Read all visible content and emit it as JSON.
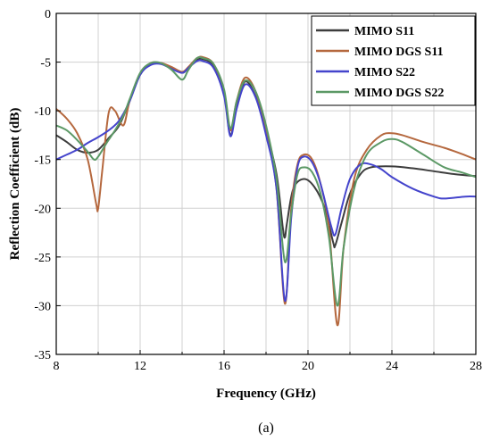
{
  "chart_data": {
    "type": "line",
    "title": "",
    "xlabel": "Frequency (GHz)",
    "ylabel": "Reflection Coefficient (dB)",
    "caption": "(a)",
    "xlim": [
      8,
      28
    ],
    "ylim": [
      -35,
      0
    ],
    "xticks": [
      8,
      12,
      16,
      20,
      24,
      28
    ],
    "yticks": [
      0,
      -5,
      -10,
      -15,
      -20,
      -25,
      -30,
      -35
    ],
    "grid": true,
    "legend": "top-right",
    "series": [
      {
        "name": "MIMO S11",
        "color": "#3d3d3d",
        "points": [
          [
            8,
            -12.5
          ],
          [
            8.5,
            -13.2
          ],
          [
            9,
            -14
          ],
          [
            9.5,
            -14.3
          ],
          [
            10,
            -14
          ],
          [
            10.5,
            -12.8
          ],
          [
            11,
            -11.5
          ],
          [
            11.5,
            -9
          ],
          [
            12,
            -6.3
          ],
          [
            12.5,
            -5.2
          ],
          [
            13,
            -5.1
          ],
          [
            13.5,
            -5.6
          ],
          [
            14,
            -6.1
          ],
          [
            14.3,
            -5.6
          ],
          [
            14.7,
            -4.8
          ],
          [
            15,
            -4.7
          ],
          [
            15.5,
            -5.4
          ],
          [
            16,
            -8.2
          ],
          [
            16.3,
            -12.5
          ],
          [
            16.6,
            -9.5
          ],
          [
            17,
            -7
          ],
          [
            17.5,
            -8.5
          ],
          [
            18,
            -12
          ],
          [
            18.5,
            -16.5
          ],
          [
            18.8,
            -22
          ],
          [
            18.9,
            -23
          ],
          [
            19,
            -21.5
          ],
          [
            19.3,
            -18
          ],
          [
            19.8,
            -17
          ],
          [
            20.3,
            -17.8
          ],
          [
            20.8,
            -20
          ],
          [
            21.2,
            -23.5
          ],
          [
            21.3,
            -23.8
          ],
          [
            21.6,
            -21.5
          ],
          [
            22,
            -18.5
          ],
          [
            22.5,
            -16.5
          ],
          [
            23,
            -15.8
          ],
          [
            24,
            -15.7
          ],
          [
            25,
            -15.9
          ],
          [
            26,
            -16.2
          ],
          [
            27,
            -16.5
          ],
          [
            28,
            -16.7
          ]
        ]
      },
      {
        "name": "MIMO DGS S11",
        "color": "#b5683e",
        "points": [
          [
            8,
            -9.8
          ],
          [
            8.5,
            -10.8
          ],
          [
            9,
            -12.3
          ],
          [
            9.5,
            -15
          ],
          [
            9.9,
            -19.5
          ],
          [
            10,
            -20
          ],
          [
            10.2,
            -16
          ],
          [
            10.5,
            -10.2
          ],
          [
            10.8,
            -10
          ],
          [
            11.2,
            -11.5
          ],
          [
            11.5,
            -9
          ],
          [
            12,
            -6.2
          ],
          [
            12.5,
            -5.1
          ],
          [
            13,
            -5.1
          ],
          [
            13.5,
            -5.5
          ],
          [
            14,
            -6
          ],
          [
            14.3,
            -5.5
          ],
          [
            14.7,
            -4.6
          ],
          [
            15,
            -4.5
          ],
          [
            15.5,
            -5.2
          ],
          [
            16,
            -8
          ],
          [
            16.3,
            -12
          ],
          [
            16.6,
            -9
          ],
          [
            17,
            -6.6
          ],
          [
            17.5,
            -8
          ],
          [
            18,
            -12
          ],
          [
            18.5,
            -18
          ],
          [
            18.9,
            -29.8
          ],
          [
            19.2,
            -20
          ],
          [
            19.5,
            -15.5
          ],
          [
            19.8,
            -14.5
          ],
          [
            20.2,
            -15
          ],
          [
            20.6,
            -17.5
          ],
          [
            21,
            -22
          ],
          [
            21.4,
            -32
          ],
          [
            21.7,
            -24
          ],
          [
            22.2,
            -17
          ],
          [
            22.8,
            -14
          ],
          [
            23.5,
            -12.5
          ],
          [
            24,
            -12.3
          ],
          [
            24.5,
            -12.5
          ],
          [
            25.5,
            -13.2
          ],
          [
            26.5,
            -13.8
          ],
          [
            27.3,
            -14.4
          ],
          [
            28,
            -15
          ]
        ]
      },
      {
        "name": "MIMO S22",
        "color": "#4444cc",
        "points": [
          [
            8,
            -15
          ],
          [
            8.5,
            -14.5
          ],
          [
            9,
            -14
          ],
          [
            9.5,
            -13.3
          ],
          [
            10,
            -12.7
          ],
          [
            10.5,
            -12
          ],
          [
            11,
            -11
          ],
          [
            11.5,
            -9
          ],
          [
            12,
            -6.3
          ],
          [
            12.5,
            -5.3
          ],
          [
            13,
            -5.2
          ],
          [
            13.5,
            -5.7
          ],
          [
            14,
            -6.1
          ],
          [
            14.3,
            -5.6
          ],
          [
            14.7,
            -4.9
          ],
          [
            15,
            -4.9
          ],
          [
            15.5,
            -5.6
          ],
          [
            16,
            -8.5
          ],
          [
            16.3,
            -12.6
          ],
          [
            16.6,
            -9.8
          ],
          [
            17,
            -7.3
          ],
          [
            17.5,
            -8.6
          ],
          [
            18,
            -12.5
          ],
          [
            18.5,
            -18
          ],
          [
            18.9,
            -29.5
          ],
          [
            19.2,
            -21
          ],
          [
            19.5,
            -15.8
          ],
          [
            19.8,
            -14.7
          ],
          [
            20.2,
            -15.3
          ],
          [
            20.6,
            -17.5
          ],
          [
            21.1,
            -21.8
          ],
          [
            21.3,
            -22.7
          ],
          [
            21.6,
            -20
          ],
          [
            22,
            -17
          ],
          [
            22.5,
            -15.5
          ],
          [
            23,
            -15.5
          ],
          [
            23.5,
            -16
          ],
          [
            24,
            -16.8
          ],
          [
            25,
            -18
          ],
          [
            26,
            -18.8
          ],
          [
            26.5,
            -19
          ],
          [
            27.5,
            -18.8
          ],
          [
            28,
            -18.8
          ]
        ]
      },
      {
        "name": "MIMO DGS S22",
        "color": "#5c9966",
        "points": [
          [
            8,
            -11.5
          ],
          [
            8.5,
            -12
          ],
          [
            9,
            -13
          ],
          [
            9.5,
            -14.2
          ],
          [
            9.8,
            -15
          ],
          [
            10,
            -14.7
          ],
          [
            10.4,
            -13.3
          ],
          [
            10.8,
            -12
          ],
          [
            11.2,
            -10.5
          ],
          [
            11.5,
            -8.8
          ],
          [
            12,
            -6.1
          ],
          [
            12.5,
            -5.1
          ],
          [
            13,
            -5.1
          ],
          [
            13.5,
            -5.8
          ],
          [
            14,
            -6.8
          ],
          [
            14.3,
            -5.8
          ],
          [
            14.7,
            -4.6
          ],
          [
            15,
            -4.6
          ],
          [
            15.5,
            -5.2
          ],
          [
            16,
            -7.8
          ],
          [
            16.3,
            -11.8
          ],
          [
            16.6,
            -9
          ],
          [
            17,
            -6.9
          ],
          [
            17.5,
            -8
          ],
          [
            18,
            -11.5
          ],
          [
            18.5,
            -17
          ],
          [
            18.9,
            -25.5
          ],
          [
            19.2,
            -20.5
          ],
          [
            19.5,
            -16.5
          ],
          [
            19.8,
            -15.8
          ],
          [
            20.2,
            -16.3
          ],
          [
            20.6,
            -18.5
          ],
          [
            21,
            -23
          ],
          [
            21.4,
            -30
          ],
          [
            21.7,
            -24
          ],
          [
            22.2,
            -18
          ],
          [
            22.8,
            -14.5
          ],
          [
            23.5,
            -13.2
          ],
          [
            24,
            -12.9
          ],
          [
            24.5,
            -13.2
          ],
          [
            25.5,
            -14.5
          ],
          [
            26.5,
            -15.8
          ],
          [
            27.3,
            -16.3
          ],
          [
            28,
            -16.8
          ]
        ]
      }
    ]
  }
}
